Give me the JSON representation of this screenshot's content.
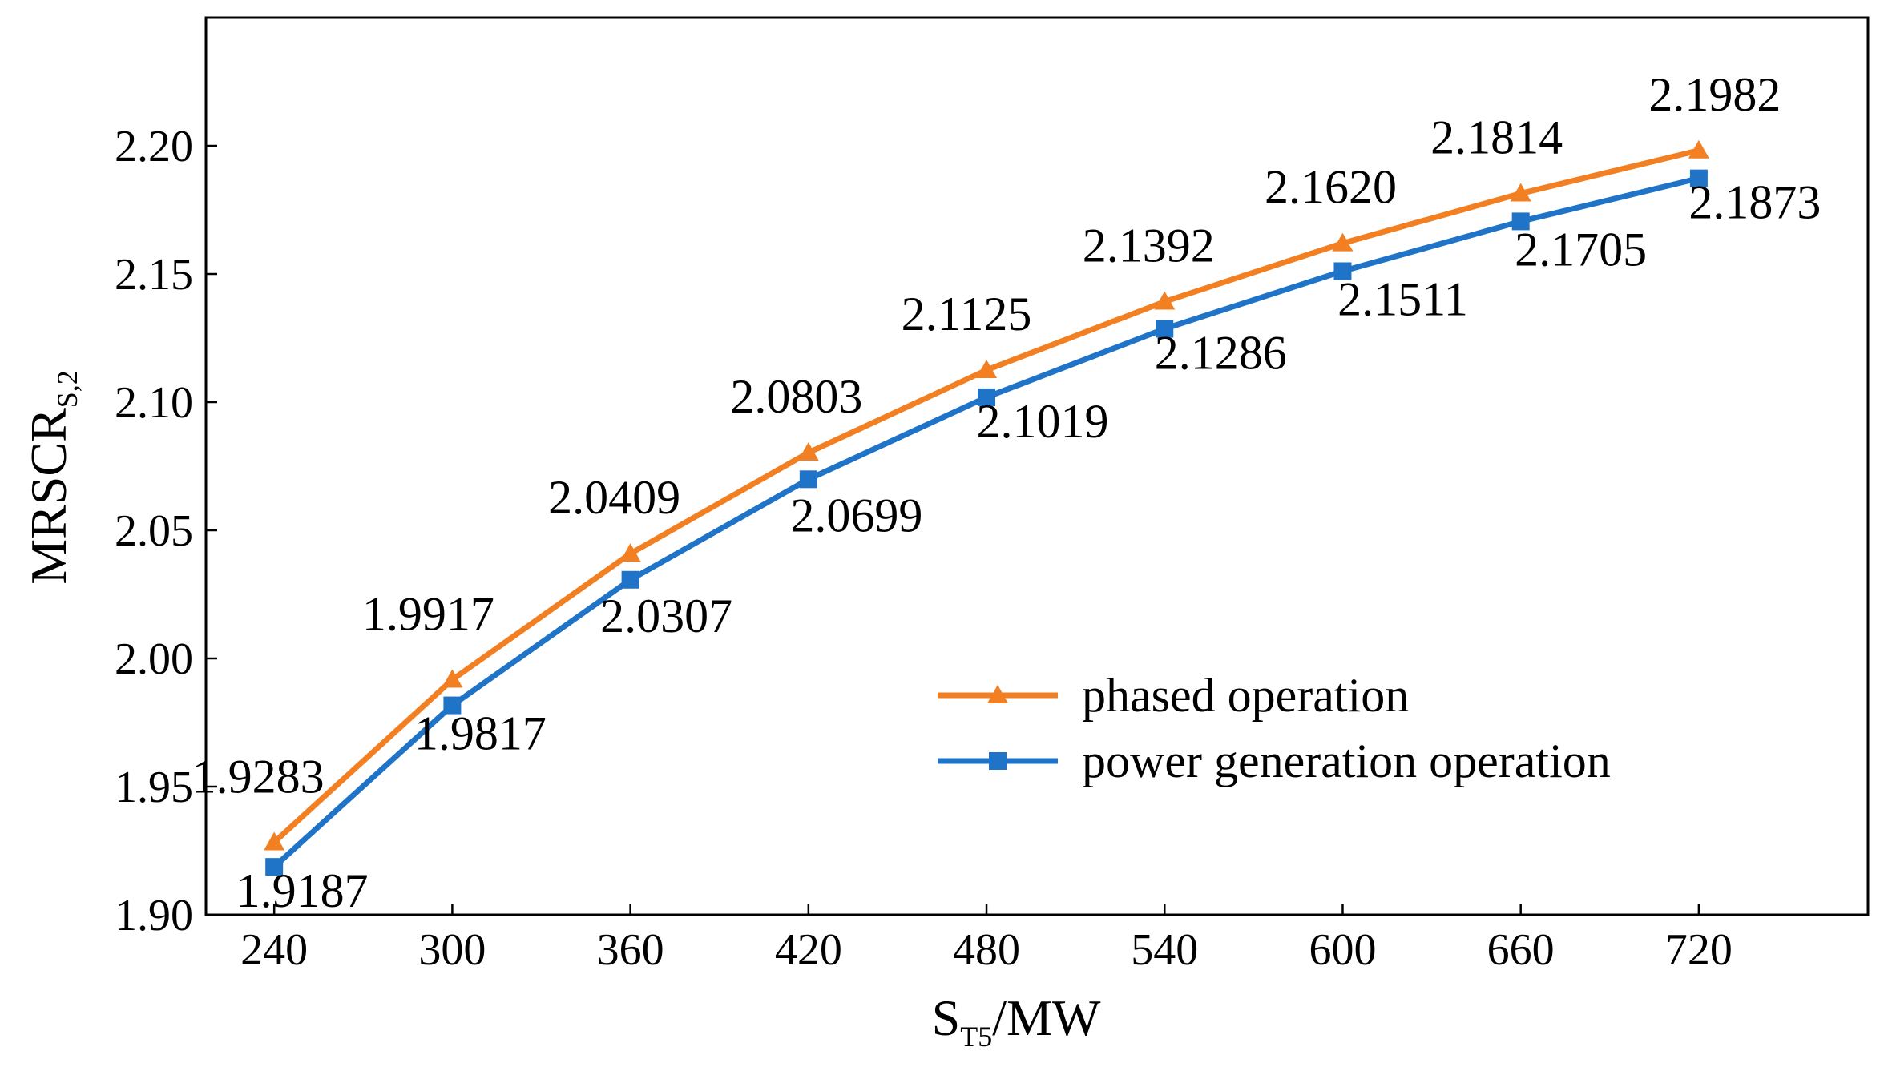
{
  "chart_data": {
    "type": "line",
    "title": "",
    "xlabel": {
      "main": "S",
      "sub": "T5",
      "unit": "/MW"
    },
    "ylabel": {
      "main": "MRSCR",
      "sub": "S,2"
    },
    "x": [
      240,
      300,
      360,
      420,
      480,
      540,
      600,
      660,
      720
    ],
    "xlim": [
      217,
      777
    ],
    "ylim": [
      1.9,
      2.25
    ],
    "yticks": [
      "1.90",
      "1.95",
      "2.00",
      "2.05",
      "2.10",
      "2.15",
      "2.20"
    ],
    "ytick_values": [
      1.9,
      1.95,
      2.0,
      2.05,
      2.1,
      2.15,
      2.2
    ],
    "grid": false,
    "legend_position": "lower-right",
    "series": [
      {
        "name": "phased operation",
        "color": "#F28023",
        "marker": "triangle",
        "values": [
          1.9283,
          1.9917,
          2.0409,
          2.0803,
          2.1125,
          2.1392,
          2.162,
          2.1814,
          2.1982
        ],
        "labels": [
          "1.9283",
          "1.9917",
          "2.0409",
          "2.0803",
          "2.1125",
          "2.1392",
          "2.1620",
          "2.1814",
          "2.1982"
        ]
      },
      {
        "name": "power generation operation",
        "color": "#1F74C8",
        "marker": "square",
        "values": [
          1.9187,
          1.9817,
          2.0307,
          2.0699,
          2.1019,
          2.1286,
          2.1511,
          2.1705,
          2.1873
        ],
        "labels": [
          "1.9187",
          "1.9817",
          "2.0307",
          "2.0699",
          "2.1019",
          "2.1286",
          "2.1511",
          "2.1705",
          "2.1873"
        ]
      }
    ]
  }
}
